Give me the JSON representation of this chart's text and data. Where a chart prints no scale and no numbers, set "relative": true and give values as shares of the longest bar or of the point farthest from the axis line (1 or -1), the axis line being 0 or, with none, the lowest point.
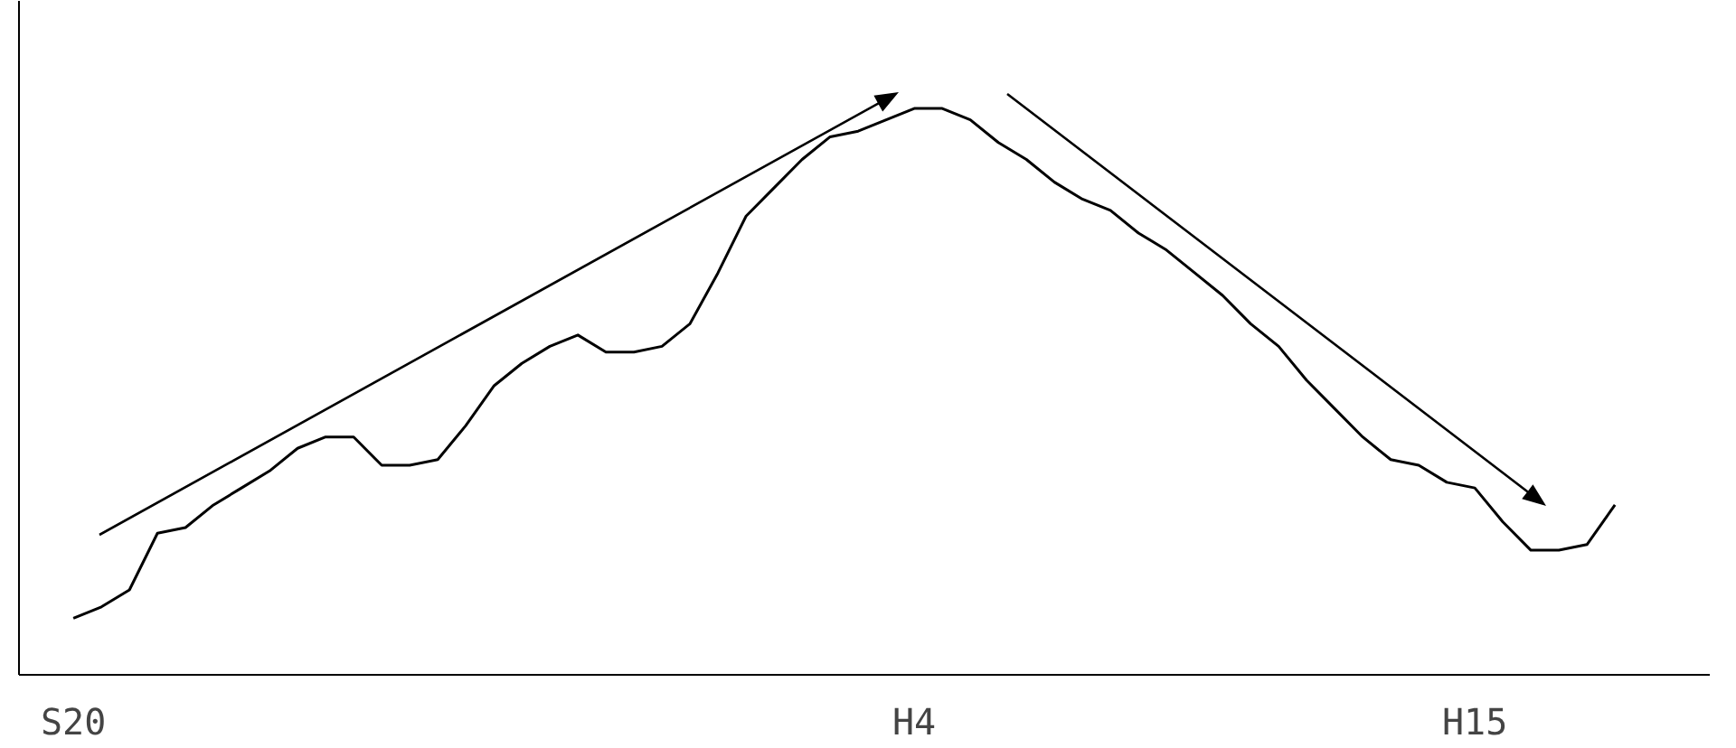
{
  "chart_data": {
    "type": "line",
    "relative": true,
    "grid": false,
    "marker": "none",
    "line_style": "solid",
    "categories": [
      "S20",
      null,
      null,
      null,
      null,
      null,
      null,
      null,
      null,
      null,
      null,
      null,
      null,
      null,
      null,
      null,
      null,
      null,
      null,
      null,
      null,
      null,
      null,
      null,
      null,
      null,
      null,
      null,
      null,
      null,
      "H4",
      null,
      null,
      null,
      null,
      null,
      null,
      null,
      null,
      null,
      null,
      null,
      null,
      null,
      null,
      null,
      null,
      null,
      null,
      null,
      "H15",
      null,
      null,
      null,
      null,
      null
    ],
    "series": [
      {
        "color": "#000000",
        "values": [
          0.1,
          0.12,
          0.15,
          0.25,
          0.26,
          0.3,
          0.33,
          0.36,
          0.4,
          0.42,
          0.42,
          0.37,
          0.37,
          0.38,
          0.44,
          0.51,
          0.55,
          0.58,
          0.6,
          0.57,
          0.57,
          0.58,
          0.62,
          0.71,
          0.81,
          0.86,
          0.91,
          0.95,
          0.96,
          0.98,
          1,
          1,
          0.98,
          0.94,
          0.91,
          0.87,
          0.84,
          0.82,
          0.78,
          0.75,
          0.71,
          0.67,
          0.62,
          0.58,
          0.52,
          0.47,
          0.42,
          0.38,
          0.37,
          0.34,
          0.33,
          0.27,
          0.22,
          0.22,
          0.23,
          0.3
        ]
      }
    ]
  }
}
